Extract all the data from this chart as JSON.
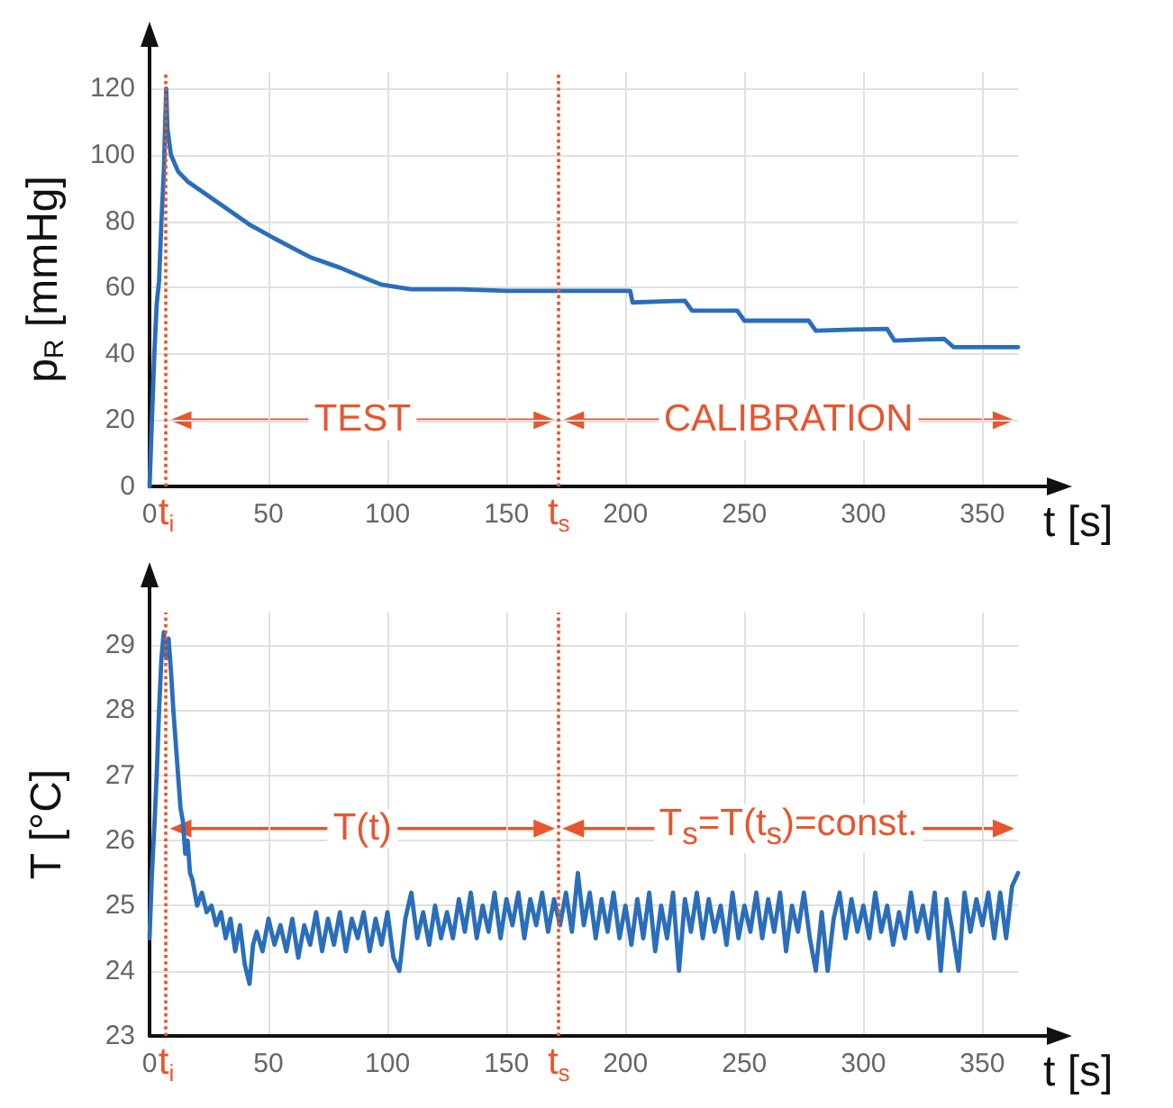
{
  "chart_data": [
    {
      "type": "line",
      "xlabel": "t [s]",
      "ylabel": "p$_{R}$ [mmHg]",
      "xlim": [
        0,
        365
      ],
      "ylim": [
        0,
        125
      ],
      "xticks": [
        0,
        50,
        100,
        150,
        200,
        250,
        300,
        350
      ],
      "yticks": [
        0,
        20,
        40,
        60,
        80,
        100,
        120
      ],
      "grid": true,
      "marker": "none",
      "ref_lines": [
        {
          "axis": "x",
          "value": 7,
          "label": "t$_{i}$",
          "color": "#e8552e",
          "line_style": "dotted"
        },
        {
          "axis": "x",
          "value": 172,
          "label": "t$_{s}$",
          "color": "#e8552e",
          "line_style": "dotted"
        }
      ],
      "annotations": [
        "TEST",
        "CALIBRATION"
      ],
      "series": [
        {
          "color": "#2a6ebb",
          "x": [
            0,
            1,
            2,
            3,
            4,
            5,
            6,
            7,
            7.5,
            9,
            12,
            16,
            22,
            28,
            34,
            42,
            52,
            60,
            68,
            80,
            90,
            97,
            105,
            110,
            130,
            150,
            172,
            190,
            202,
            203,
            215,
            225,
            228,
            240,
            247,
            250,
            265,
            277,
            280,
            295,
            310,
            313,
            325,
            334,
            338,
            350,
            365
          ],
          "values": [
            0,
            20,
            40,
            55,
            62,
            80,
            95,
            120,
            108,
            100,
            95,
            92,
            89,
            86,
            83,
            79,
            75,
            72,
            69,
            66,
            63,
            61,
            60,
            59.5,
            59.5,
            59,
            59,
            59,
            59,
            55.5,
            55.8,
            56,
            53,
            53,
            53,
            50,
            50,
            50,
            47,
            47.3,
            47.5,
            44,
            44.3,
            44.5,
            42,
            42,
            42
          ]
        }
      ]
    },
    {
      "type": "line",
      "xlabel": "t [s]",
      "ylabel": "T [°C]",
      "xlim": [
        0,
        365
      ],
      "ylim": [
        23,
        29.5
      ],
      "xticks": [
        0,
        50,
        100,
        150,
        200,
        250,
        300,
        350
      ],
      "yticks": [
        23,
        24,
        25,
        26,
        27,
        28,
        29
      ],
      "grid": true,
      "marker": "none",
      "ref_lines": [
        {
          "axis": "x",
          "value": 7,
          "label": "t$_{i}$",
          "color": "#e8552e",
          "line_style": "dotted"
        },
        {
          "axis": "x",
          "value": 172,
          "label": "t$_{s}$",
          "color": "#e8552e",
          "line_style": "dotted"
        }
      ],
      "annotations": [
        "T(t)",
        "T$_{s}$=T(t$_{s}$)=const."
      ],
      "series": [
        {
          "color": "#2a6ebb",
          "x": [
            0,
            1,
            2,
            3,
            4,
            5,
            6,
            7,
            8,
            9,
            10,
            11,
            12,
            13,
            14,
            15,
            16,
            17,
            18,
            20,
            22,
            24,
            26,
            28,
            30,
            32,
            34,
            36,
            38,
            40,
            42,
            43.5,
            45,
            47.5,
            50,
            52.5,
            55,
            57.5,
            60,
            62.5,
            65,
            67.5,
            70,
            72.5,
            75,
            77.5,
            80,
            82.5,
            85,
            87.5,
            90,
            92.5,
            95,
            97.5,
            100,
            102.5,
            105,
            107.5,
            110,
            112.5,
            115,
            117.5,
            120,
            122.5,
            125,
            127.5,
            130,
            132.5,
            135,
            137.5,
            140,
            142.5,
            145,
            147.5,
            150,
            152.5,
            155,
            157.5,
            160,
            162.5,
            165,
            167.5,
            170,
            172.5,
            175,
            177.5,
            180,
            182.5,
            185,
            187.5,
            190,
            192.5,
            195,
            197.5,
            200,
            202.5,
            205,
            207.5,
            210,
            212.5,
            215,
            217.5,
            220,
            222.5,
            225,
            227.5,
            230,
            232.5,
            235,
            237.5,
            240,
            242.5,
            245,
            247.5,
            250,
            252.5,
            255,
            257.5,
            260,
            262.5,
            265,
            267.5,
            270,
            272.5,
            275,
            277.5,
            280,
            282.5,
            285,
            287.5,
            290,
            292.5,
            295,
            297.5,
            300,
            302.5,
            305,
            307.5,
            310,
            312.5,
            315,
            317.5,
            320,
            322.5,
            325,
            327.5,
            330,
            332.5,
            335,
            337.5,
            340,
            342.5,
            345,
            347.5,
            350,
            352.5,
            355,
            357.5,
            360,
            362.5,
            365
          ],
          "values": [
            24.5,
            25.5,
            26.2,
            27,
            28,
            28.8,
            29.2,
            28.8,
            29.1,
            28.6,
            28,
            27.5,
            27,
            26.5,
            26.3,
            25.8,
            26,
            25.5,
            25.4,
            25,
            25.2,
            24.9,
            25,
            24.7,
            24.9,
            24.5,
            24.8,
            24.3,
            24.7,
            24.1,
            23.8,
            24.4,
            24.6,
            24.3,
            24.8,
            24.4,
            24.7,
            24.3,
            24.8,
            24.2,
            24.7,
            24.4,
            24.9,
            24.3,
            24.8,
            24.4,
            24.9,
            24.3,
            24.8,
            24.5,
            24.9,
            24.3,
            24.8,
            24.4,
            24.9,
            24.2,
            24,
            24.8,
            25.2,
            24.5,
            24.9,
            24.4,
            25,
            24.5,
            24.9,
            24.5,
            25.1,
            24.6,
            25.2,
            24.5,
            25,
            24.6,
            25.2,
            24.5,
            25.1,
            24.7,
            25.2,
            24.5,
            25.1,
            24.7,
            25.2,
            24.6,
            25.1,
            24.7,
            25.2,
            24.6,
            25.5,
            24.7,
            25.2,
            24.5,
            25.1,
            24.6,
            25.2,
            24.5,
            25,
            24.4,
            25.1,
            24.5,
            25.2,
            24.3,
            25,
            24.5,
            25.2,
            24,
            25.1,
            24.6,
            25.2,
            24.5,
            25.1,
            24.6,
            25,
            24.4,
            25.2,
            24.5,
            25,
            24.6,
            25.2,
            24.5,
            25.1,
            24.6,
            25.2,
            24.3,
            25,
            24.6,
            25.2,
            24.5,
            24,
            24.9,
            24,
            24.8,
            25.2,
            24.5,
            25.1,
            24.6,
            25,
            24.5,
            25.2,
            24.6,
            25,
            24.4,
            24.9,
            24.5,
            25.2,
            24.6,
            25,
            24.5,
            25.2,
            24,
            25.1,
            24.6,
            24,
            25.2,
            24.6,
            25.1,
            24.7,
            25.2,
            24.5,
            25.2,
            24.5,
            25.3,
            25.5
          ]
        }
      ]
    }
  ]
}
